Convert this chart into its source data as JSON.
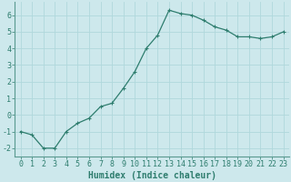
{
  "x": [
    0,
    1,
    2,
    3,
    4,
    5,
    6,
    7,
    8,
    9,
    10,
    11,
    12,
    13,
    14,
    15,
    16,
    17,
    18,
    19,
    20,
    21,
    22,
    23
  ],
  "y": [
    -1.0,
    -1.2,
    -2.0,
    -2.0,
    -1.0,
    -0.5,
    -0.2,
    0.5,
    0.7,
    1.6,
    2.6,
    4.0,
    4.8,
    6.3,
    6.1,
    6.0,
    5.7,
    5.3,
    5.1,
    4.7,
    4.7,
    4.6,
    4.7,
    5.0
  ],
  "line_color": "#2e7d6e",
  "marker": "+",
  "marker_size": 3,
  "line_width": 0.9,
  "xlabel": "Humidex (Indice chaleur)",
  "xlim_min": -0.5,
  "xlim_max": 23.5,
  "ylim_min": -2.5,
  "ylim_max": 6.8,
  "yticks": [
    -2,
    -1,
    0,
    1,
    2,
    3,
    4,
    5,
    6
  ],
  "xticks": [
    0,
    1,
    2,
    3,
    4,
    5,
    6,
    7,
    8,
    9,
    10,
    11,
    12,
    13,
    14,
    15,
    16,
    17,
    18,
    19,
    20,
    21,
    22,
    23
  ],
  "xtick_labels": [
    "0",
    "1",
    "2",
    "3",
    "4",
    "5",
    "6",
    "7",
    "8",
    "9",
    "10",
    "11",
    "12",
    "13",
    "14",
    "15",
    "16",
    "17",
    "18",
    "19",
    "20",
    "21",
    "22",
    "23"
  ],
  "bg_color": "#cde8ec",
  "grid_color": "#b0d8dc",
  "line_border_color": "#5a9a90",
  "tick_color": "#2e7d6e",
  "label_color": "#2e7d6e",
  "xlabel_fontsize": 7,
  "tick_fontsize": 6,
  "markeredgewidth": 0.8
}
